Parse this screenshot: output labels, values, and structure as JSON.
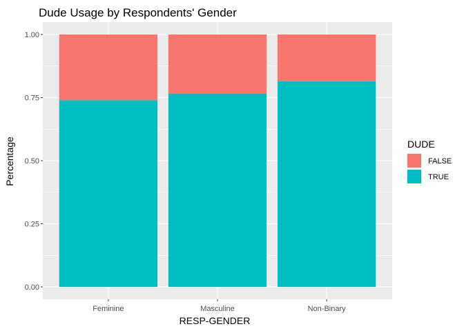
{
  "chart_data": {
    "type": "bar",
    "stacked": true,
    "title": "Dude Usage by Respondents' Gender",
    "xlabel": "RESP-GENDER",
    "ylabel": "Percentage",
    "categories": [
      "Feminine",
      "Masculine",
      "Non-Binary"
    ],
    "ylim": [
      0,
      1
    ],
    "yticks": [
      "0.00",
      "0.25",
      "0.50",
      "0.75",
      "1.00"
    ],
    "grid": true,
    "legend": {
      "title": "DUDE",
      "position": "right"
    },
    "series": [
      {
        "name": "TRUE",
        "color": "#00BFC4",
        "values": [
          0.74,
          0.765,
          0.815
        ]
      },
      {
        "name": "FALSE",
        "color": "#F8766D",
        "values": [
          0.26,
          0.235,
          0.185
        ]
      }
    ]
  }
}
